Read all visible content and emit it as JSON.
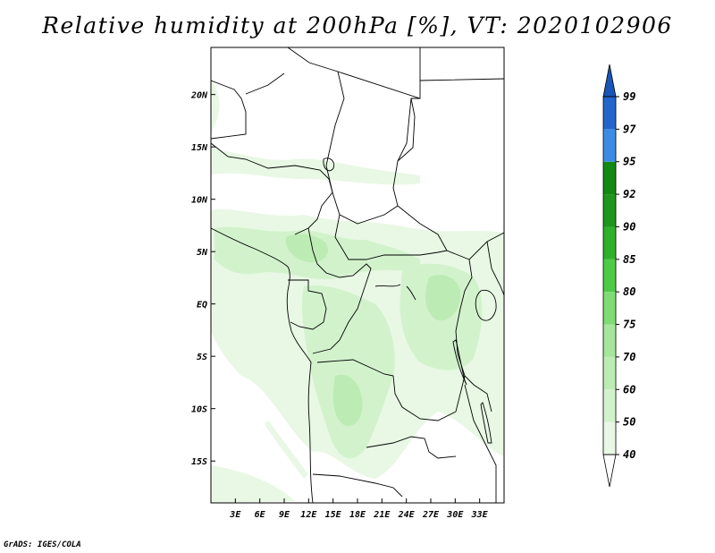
{
  "title": "Relative humidity at 200hPa [%], VT: 2020102906",
  "credit": "GrADS: IGES/COLA",
  "map": {
    "lon_range": [
      0,
      36
    ],
    "lat_range": [
      -19,
      24.5
    ],
    "lat_ticks": [
      {
        "value": 20,
        "label": "20N"
      },
      {
        "value": 15,
        "label": "15N"
      },
      {
        "value": 10,
        "label": "10N"
      },
      {
        "value": 5,
        "label": "5N"
      },
      {
        "value": 0,
        "label": "EQ"
      },
      {
        "value": -5,
        "label": "5S"
      },
      {
        "value": -10,
        "label": "10S"
      },
      {
        "value": -15,
        "label": "15S"
      }
    ],
    "lon_ticks": [
      {
        "value": 3,
        "label": "3E"
      },
      {
        "value": 6,
        "label": "6E"
      },
      {
        "value": 9,
        "label": "9E"
      },
      {
        "value": 12,
        "label": "12E"
      },
      {
        "value": 15,
        "label": "15E"
      },
      {
        "value": 18,
        "label": "18E"
      },
      {
        "value": 21,
        "label": "21E"
      },
      {
        "value": 24,
        "label": "24E"
      },
      {
        "value": 27,
        "label": "27E"
      },
      {
        "value": 30,
        "label": "30E"
      },
      {
        "value": 33,
        "label": "33E"
      }
    ]
  },
  "colorbar": {
    "levels": [
      {
        "label": "40",
        "color": "#ffffff"
      },
      {
        "label": "50",
        "color": "#e8f8e4"
      },
      {
        "label": "60",
        "color": "#d2f2cc"
      },
      {
        "label": "70",
        "color": "#bcecb4"
      },
      {
        "label": "75",
        "color": "#a6e69c"
      },
      {
        "label": "80",
        "color": "#7fdc74"
      },
      {
        "label": "85",
        "color": "#4ecb46"
      },
      {
        "label": "90",
        "color": "#2fb02a"
      },
      {
        "label": "92",
        "color": "#1e961c"
      },
      {
        "label": "95",
        "color": "#128a12"
      },
      {
        "label": "97",
        "color": "#3c8ce6"
      },
      {
        "label": "99",
        "color": "#2266cc"
      }
    ],
    "top_color": "#1a55b8",
    "bottom_color": "#ffffff"
  }
}
